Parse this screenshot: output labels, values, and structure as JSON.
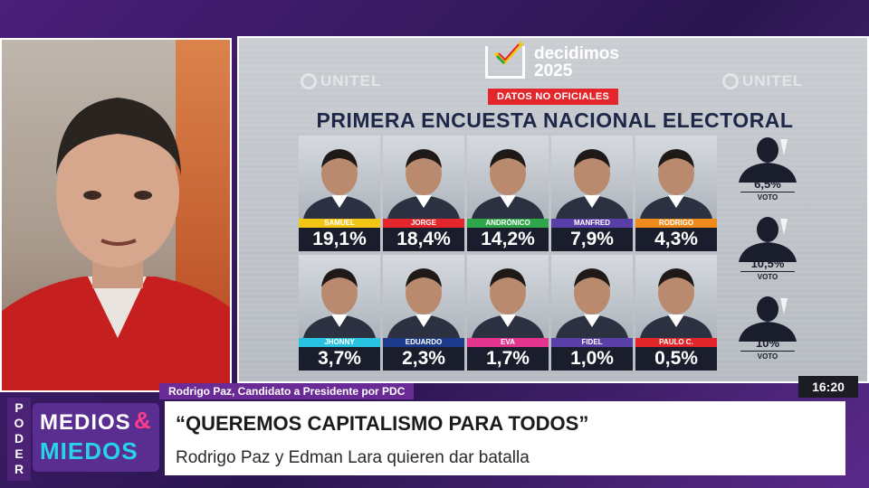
{
  "video": {
    "label": "presenter-video"
  },
  "poll": {
    "brand_line1": "decidimos",
    "brand_line2": "2025",
    "watermark": "UNITEL",
    "badge": "DATOS NO OFICIALES",
    "title": "PRIMERA ENCUESTA NACIONAL ELECTORAL",
    "row1": [
      {
        "name": "SAMUEL",
        "pct": "19,1%",
        "color": "#f3c613"
      },
      {
        "name": "JORGE",
        "pct": "18,4%",
        "color": "#e3262b"
      },
      {
        "name": "ANDRÓNICO",
        "pct": "14,2%",
        "color": "#2fa64a"
      },
      {
        "name": "MANFRED",
        "pct": "7,9%",
        "color": "#5b3fa8"
      },
      {
        "name": "RODRIGO",
        "pct": "4,3%",
        "color": "#f08a1c"
      }
    ],
    "row2": [
      {
        "name": "JHONNY",
        "pct": "3,7%",
        "color": "#27c3e0"
      },
      {
        "name": "EDUARDO",
        "pct": "2,3%",
        "color": "#1e3a8a"
      },
      {
        "name": "EVA",
        "pct": "1,7%",
        "color": "#e4358e"
      },
      {
        "name": "FIDEL",
        "pct": "1,0%",
        "color": "#5b3fa8"
      },
      {
        "name": "PAULO C.",
        "pct": "0,5%",
        "color": "#e3262b"
      }
    ],
    "side": [
      {
        "pct": "6,5%",
        "label": "VOTO"
      },
      {
        "pct": "10,5%",
        "label": "VOTO"
      },
      {
        "pct": "10%",
        "label": "VOTO"
      }
    ]
  },
  "lower_third": {
    "speaker": "Rodrigo Paz, Candidato a Presidente por PDC",
    "headline": "“QUEREMOS CAPITALISMO PARA TODOS”",
    "subline": "Rodrigo Paz y Edman Lara quieren dar batalla",
    "clock": "16:20"
  },
  "show": {
    "vertical": "PODER",
    "logo_line1": "MEDIOS",
    "logo_amp": "&",
    "logo_line2": "MIEDOS"
  }
}
